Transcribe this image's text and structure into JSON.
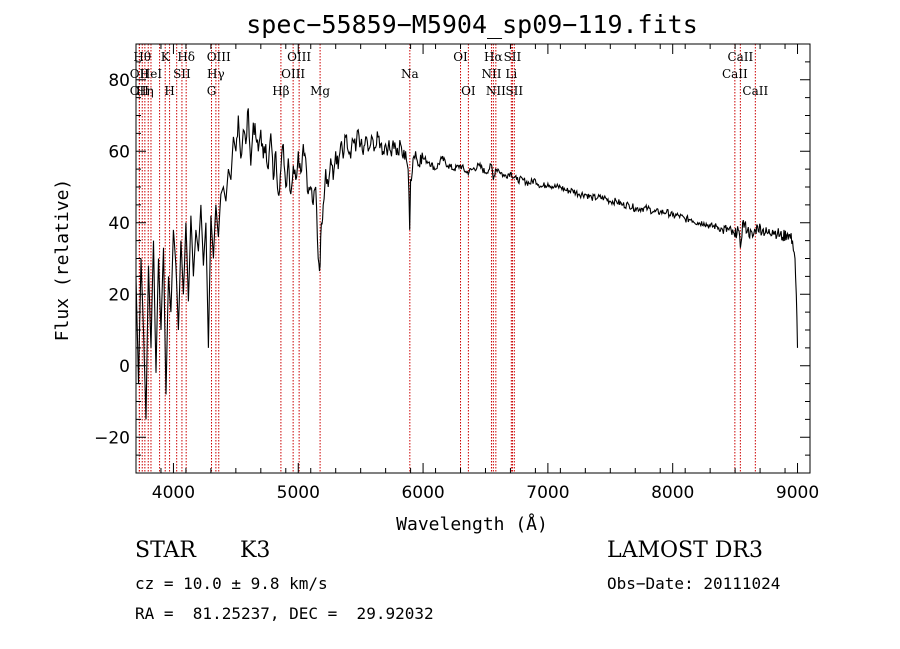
{
  "chart_data": {
    "type": "line",
    "title": "spec−55859−M5904_sp09−119.fits",
    "xlabel": "Wavelength (Å)",
    "ylabel": "Flux (relative)",
    "xlim": [
      3700,
      9100
    ],
    "ylim": [
      -30,
      90
    ],
    "xticks": [
      4000,
      5000,
      6000,
      7000,
      8000,
      9000
    ],
    "xtick_labels": [
      "4000",
      "5000",
      "6000",
      "7000",
      "8000",
      "9000"
    ],
    "yticks": [
      -20,
      0,
      20,
      40,
      60,
      80
    ],
    "ytick_labels": [
      "−20",
      "0",
      "20",
      "40",
      "60",
      "80"
    ],
    "line_color": "#000000",
    "marker_color": "#cc0000",
    "series": [
      {
        "name": "flux",
        "x": [
          3700,
          3720,
          3740,
          3760,
          3780,
          3800,
          3820,
          3840,
          3860,
          3880,
          3900,
          3920,
          3940,
          3960,
          3980,
          4000,
          4020,
          4040,
          4060,
          4080,
          4100,
          4120,
          4140,
          4160,
          4180,
          4200,
          4220,
          4240,
          4260,
          4280,
          4300,
          4320,
          4340,
          4360,
          4380,
          4400,
          4420,
          4440,
          4460,
          4480,
          4500,
          4520,
          4540,
          4560,
          4580,
          4600,
          4620,
          4640,
          4660,
          4680,
          4700,
          4720,
          4740,
          4760,
          4780,
          4800,
          4820,
          4840,
          4861,
          4880,
          4900,
          4920,
          4940,
          4960,
          4980,
          5000,
          5020,
          5040,
          5060,
          5080,
          5100,
          5120,
          5140,
          5160,
          5175,
          5185,
          5200,
          5220,
          5240,
          5260,
          5280,
          5300,
          5320,
          5340,
          5360,
          5380,
          5400,
          5420,
          5440,
          5460,
          5480,
          5500,
          5520,
          5540,
          5560,
          5580,
          5600,
          5620,
          5640,
          5660,
          5680,
          5700,
          5720,
          5740,
          5760,
          5780,
          5800,
          5820,
          5840,
          5860,
          5880,
          5893,
          5900,
          5920,
          5940,
          5960,
          5980,
          6000,
          6050,
          6100,
          6150,
          6200,
          6250,
          6300,
          6350,
          6400,
          6450,
          6500,
          6550,
          6563,
          6580,
          6600,
          6650,
          6700,
          6750,
          6800,
          6850,
          6900,
          6950,
          7000,
          7050,
          7100,
          7150,
          7200,
          7250,
          7300,
          7350,
          7400,
          7450,
          7500,
          7550,
          7600,
          7650,
          7700,
          7750,
          7800,
          7850,
          7900,
          7950,
          8000,
          8050,
          8100,
          8150,
          8200,
          8250,
          8300,
          8350,
          8400,
          8450,
          8498,
          8520,
          8542,
          8560,
          8600,
          8640,
          8662,
          8680,
          8720,
          8760,
          8800,
          8840,
          8880,
          8920,
          8960,
          8980,
          8990,
          9000
        ],
        "y": [
          25,
          -5,
          30,
          10,
          -15,
          28,
          5,
          35,
          -2,
          30,
          10,
          33,
          -8,
          25,
          15,
          38,
          28,
          10,
          35,
          20,
          40,
          18,
          42,
          25,
          38,
          32,
          45,
          28,
          40,
          5,
          42,
          30,
          45,
          36,
          48,
          50,
          46,
          55,
          52,
          64,
          60,
          70,
          58,
          66,
          62,
          72,
          56,
          68,
          64,
          60,
          66,
          58,
          62,
          55,
          65,
          52,
          60,
          48,
          55,
          62,
          50,
          58,
          48,
          56,
          52,
          60,
          54,
          62,
          58,
          48,
          50,
          45,
          50,
          30,
          28,
          40,
          45,
          55,
          50,
          58,
          52,
          60,
          55,
          62,
          58,
          64,
          60,
          58,
          63,
          60,
          66,
          62,
          59,
          64,
          60,
          62,
          63,
          61,
          64,
          62,
          60,
          62,
          61,
          60,
          63,
          61,
          59,
          62,
          58,
          60,
          55,
          38,
          52,
          58,
          60,
          56,
          59,
          58,
          57,
          55,
          58,
          56,
          55,
          56,
          54,
          55,
          56,
          54,
          56,
          52,
          55,
          55,
          53,
          54,
          52,
          52,
          51,
          52,
          50,
          51,
          50,
          50,
          49,
          49,
          48,
          48,
          47,
          47,
          47,
          46,
          46,
          45,
          45,
          44,
          44,
          44,
          43,
          43,
          43,
          42,
          42,
          41,
          41,
          40,
          40,
          39,
          39,
          38,
          38,
          36,
          39,
          33,
          40,
          38,
          36,
          38,
          39,
          38,
          37,
          38,
          37,
          36,
          37,
          35,
          30,
          20,
          5
        ]
      }
    ],
    "line_markers": [
      {
        "wavelength": 3750,
        "label": "Hθ",
        "row": 0
      },
      {
        "wavelength": 3727,
        "label": "OII",
        "row": 1
      },
      {
        "wavelength": 3727,
        "label": "OII",
        "row": 2
      },
      {
        "wavelength": 3771,
        "label": "Hη",
        "row": 2
      },
      {
        "wavelength": 3798,
        "label": "",
        "row": 0
      },
      {
        "wavelength": 3820,
        "label": "HeI",
        "row": 1
      },
      {
        "wavelength": 3889,
        "label": "",
        "row": 0
      },
      {
        "wavelength": 3934,
        "label": "K",
        "row": 0
      },
      {
        "wavelength": 3969,
        "label": "H",
        "row": 2
      },
      {
        "wavelength": 4026,
        "label": "",
        "row": 0
      },
      {
        "wavelength": 4068,
        "label": "SII",
        "row": 1
      },
      {
        "wavelength": 4102,
        "label": "Hδ",
        "row": 0
      },
      {
        "wavelength": 4305,
        "label": "G",
        "row": 2
      },
      {
        "wavelength": 4340,
        "label": "Hγ",
        "row": 1
      },
      {
        "wavelength": 4363,
        "label": "OIII",
        "row": 0
      },
      {
        "wavelength": 4861,
        "label": "Hβ",
        "row": 2
      },
      {
        "wavelength": 4959,
        "label": "OIII",
        "row": 1
      },
      {
        "wavelength": 5007,
        "label": "OIII",
        "row": 0
      },
      {
        "wavelength": 5175,
        "label": "Mg",
        "row": 2
      },
      {
        "wavelength": 5894,
        "label": "Na",
        "row": 1
      },
      {
        "wavelength": 6300,
        "label": "OI",
        "row": 0
      },
      {
        "wavelength": 6363,
        "label": "OI",
        "row": 2
      },
      {
        "wavelength": 6548,
        "label": "NII",
        "row": 1
      },
      {
        "wavelength": 6563,
        "label": "Hα",
        "row": 0
      },
      {
        "wavelength": 6583,
        "label": "NII",
        "row": 2
      },
      {
        "wavelength": 6707,
        "label": "Li",
        "row": 1
      },
      {
        "wavelength": 6716,
        "label": "SII",
        "row": 0
      },
      {
        "wavelength": 6731,
        "label": "SII",
        "row": 2
      },
      {
        "wavelength": 8498,
        "label": "CaII",
        "row": 1
      },
      {
        "wavelength": 8542,
        "label": "CaII",
        "row": 0
      },
      {
        "wavelength": 8662,
        "label": "CaII",
        "row": 2
      }
    ]
  },
  "footer": {
    "object_class": "STAR",
    "subclass": "K3",
    "redshift": "cz = 10.0 ± 9.8 km/s",
    "coords": "RA =  81.25237, DEC =  29.92032",
    "survey": "LAMOST DR3",
    "obs_date": "Obs−Date: 20111024"
  }
}
